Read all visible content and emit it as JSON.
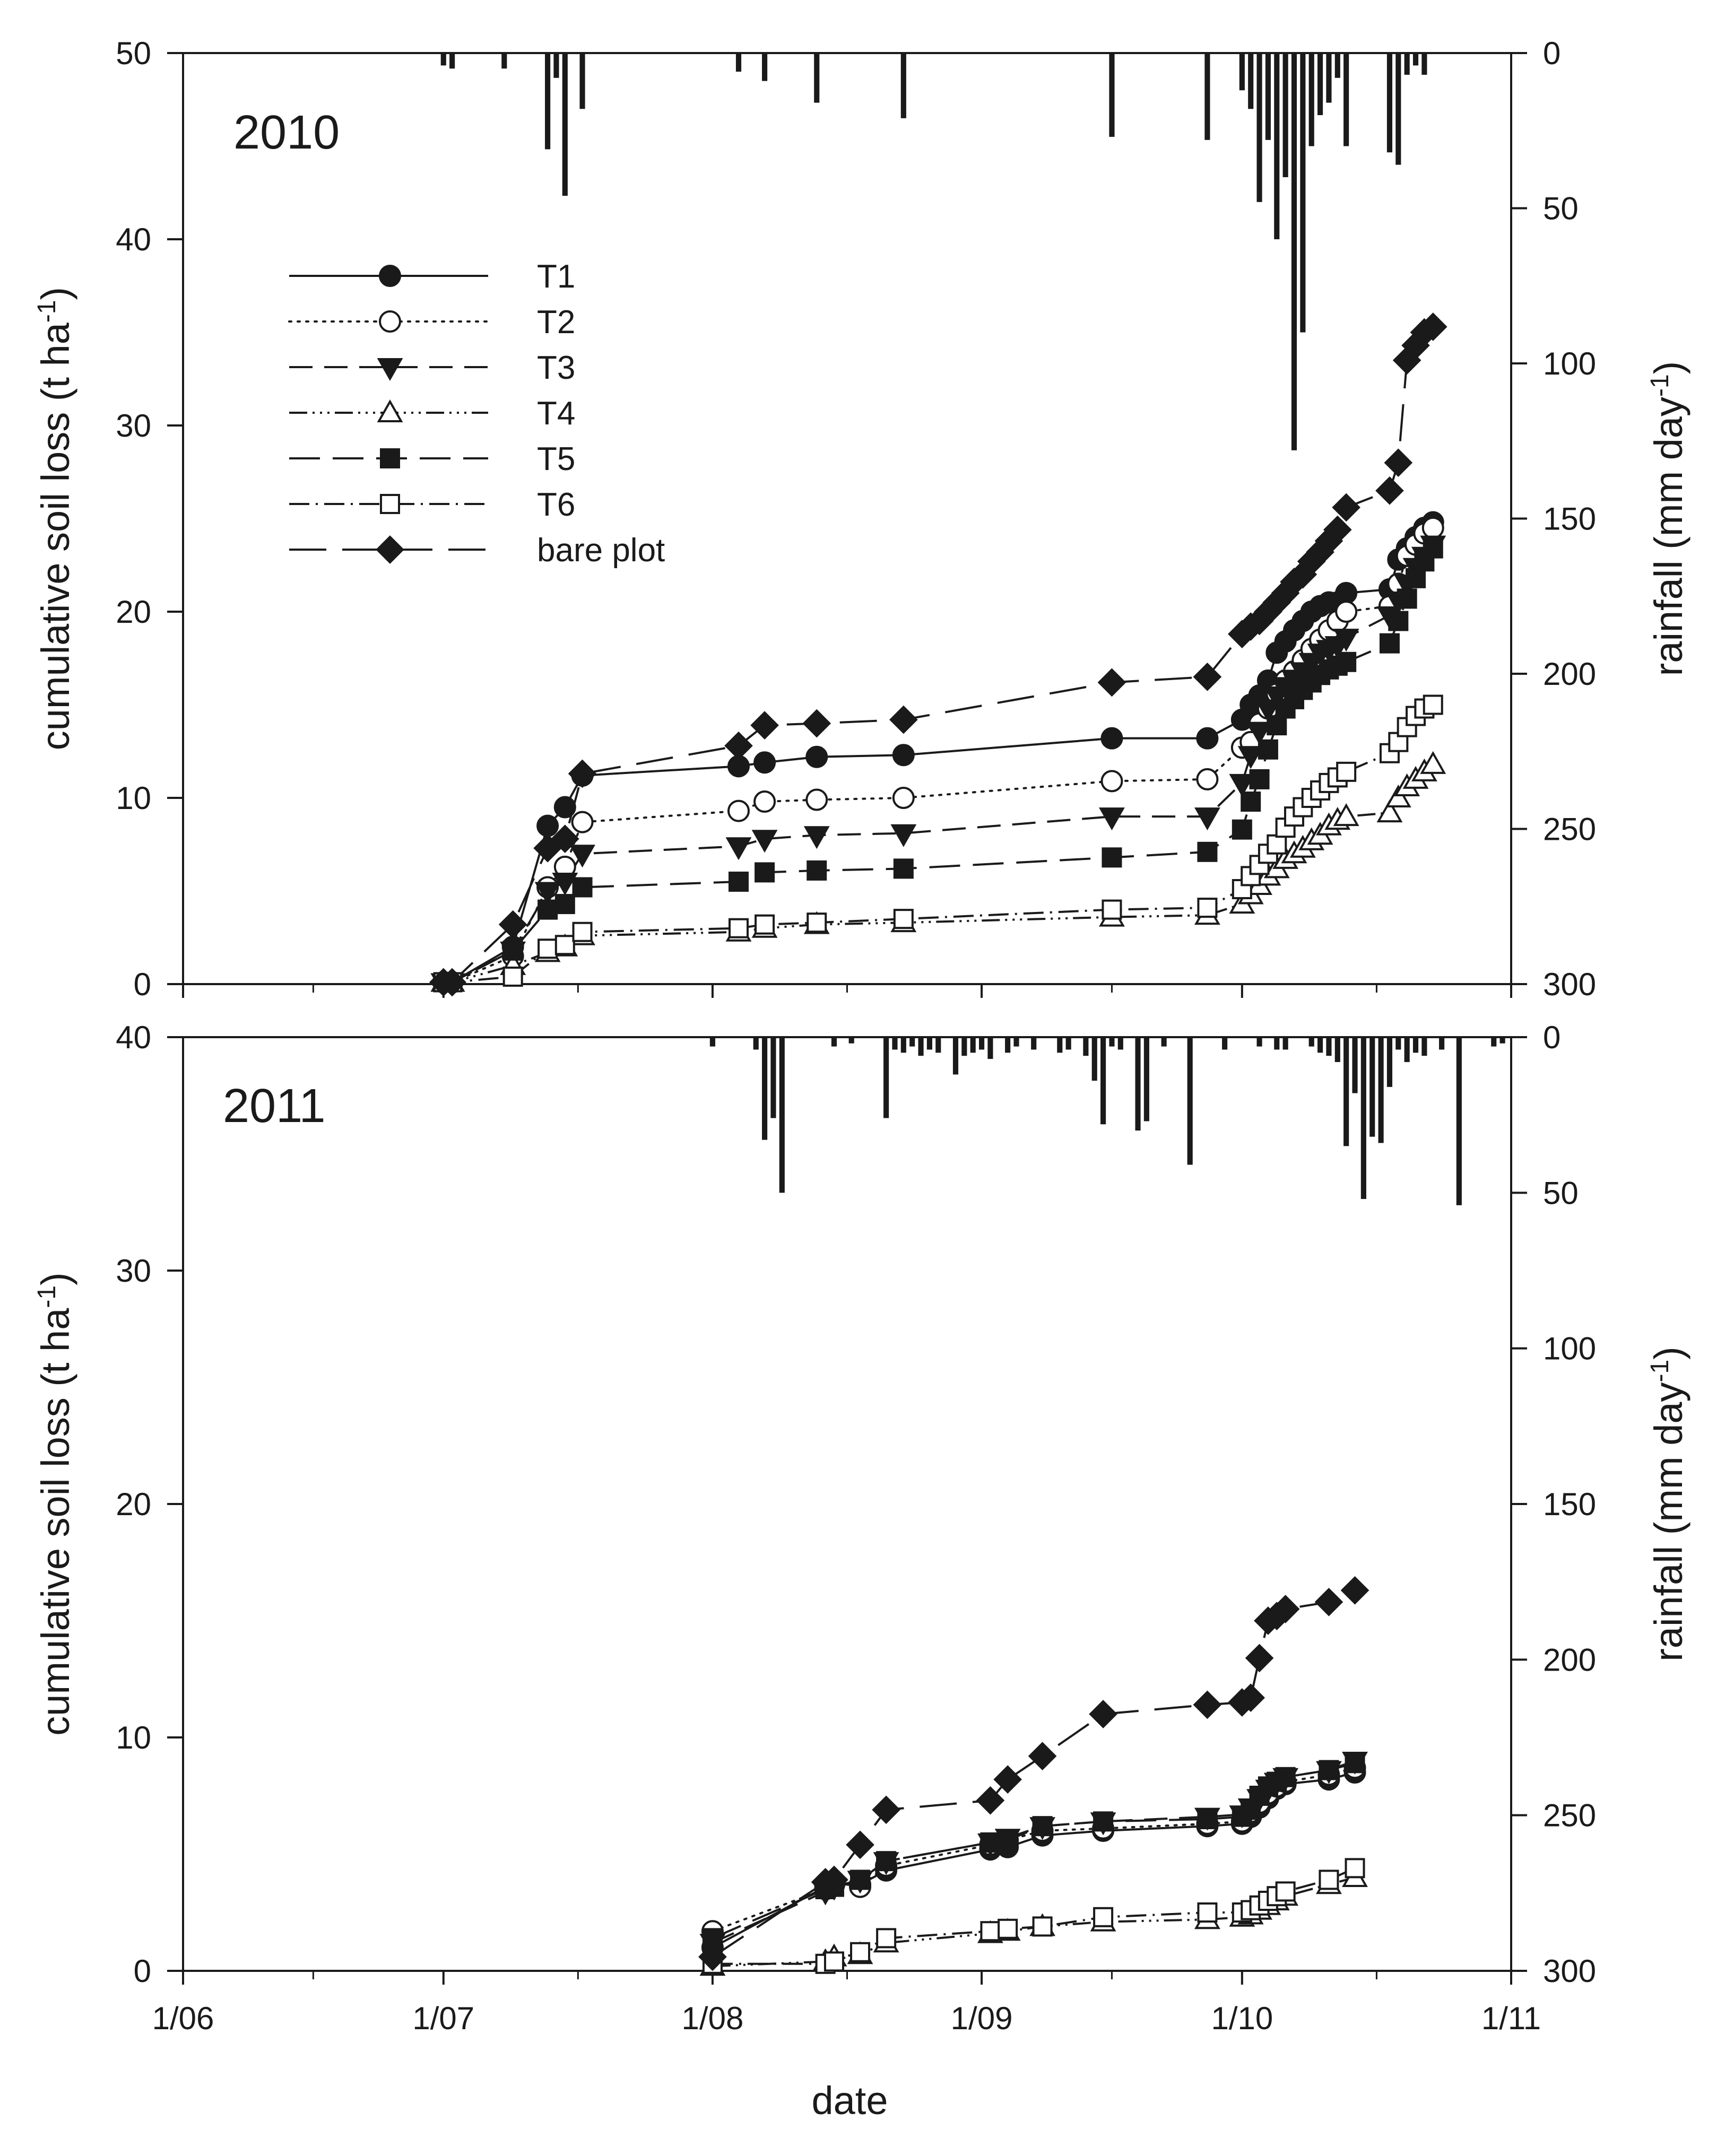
{
  "chart_data": [
    {
      "type": "line",
      "panel": "top",
      "title": "2010",
      "xlabel": "",
      "ylabel": "cumulative soil loss (t ha-1)",
      "ylabel_parts": {
        "base": "cumulative soil loss (t ha",
        "sup": "-1",
        "close": ")"
      },
      "y2label": "rainfall (mm day-1)",
      "y2label_parts": {
        "base": "rainfall (mm day",
        "sup": "-1",
        "close": ")"
      },
      "ylim": [
        0,
        50
      ],
      "yticks": [
        0,
        10,
        20,
        30,
        40,
        50
      ],
      "y2lim": [
        0,
        300
      ],
      "y2ticks": [
        0,
        50,
        100,
        150,
        200,
        250,
        300
      ],
      "y2_inverted": true,
      "x_unit": "day of year",
      "xlim": [
        152,
        305
      ],
      "xticks": [
        152,
        182,
        213,
        244,
        274,
        305
      ],
      "xtick_labels": [
        "1/06",
        "1/07",
        "1/08",
        "1/09",
        "1/10",
        "1/11"
      ],
      "grid": false,
      "legend": {
        "position": "upper-left",
        "entries": [
          "T1",
          "T2",
          "T3",
          "T4",
          "T5",
          "T6",
          "bare plot"
        ]
      },
      "rainfall": {
        "x": [
          182,
          183,
          189,
          194,
          195,
          196,
          198,
          216,
          219,
          225,
          235,
          259,
          270,
          274,
          275,
          276,
          277,
          278,
          279,
          280,
          281,
          282,
          283,
          284,
          285,
          286,
          291,
          292,
          293,
          294,
          295
        ],
        "values": [
          4,
          5,
          5,
          31,
          8,
          46,
          18,
          6,
          9,
          16,
          21,
          27,
          28,
          12,
          18,
          48,
          28,
          60,
          40,
          128,
          90,
          30,
          20,
          16,
          8,
          30,
          32,
          36,
          7,
          4,
          7
        ]
      },
      "series": [
        {
          "name": "T1",
          "x": [
            182,
            183,
            190,
            194,
            196,
            198,
            216,
            219,
            225,
            235,
            259,
            270,
            274,
            275,
            276,
            277,
            278,
            279,
            280,
            281,
            282,
            283,
            284,
            285,
            286,
            291,
            292,
            293,
            294,
            295,
            296
          ],
          "values": [
            0.1,
            0.1,
            2.0,
            8.5,
            9.5,
            11.2,
            11.7,
            11.9,
            12.2,
            12.3,
            13.2,
            13.2,
            14.2,
            15.0,
            15.5,
            16.3,
            17.8,
            18.4,
            19.0,
            19.5,
            20.0,
            20.3,
            20.5,
            20.5,
            21.0,
            21.2,
            22.8,
            23.4,
            24.0,
            24.5,
            24.8
          ]
        },
        {
          "name": "T2",
          "x": [
            182,
            183,
            190,
            194,
            196,
            198,
            216,
            219,
            225,
            235,
            259,
            270,
            274,
            275,
            276,
            277,
            278,
            279,
            280,
            281,
            282,
            283,
            284,
            285,
            286,
            291,
            292,
            293,
            294,
            295,
            296
          ],
          "values": [
            0.1,
            0.1,
            1.5,
            5.2,
            6.3,
            8.7,
            9.3,
            9.8,
            9.9,
            10.0,
            10.9,
            11.0,
            12.7,
            13.0,
            14.0,
            14.8,
            15.6,
            16.3,
            16.8,
            17.4,
            18.0,
            18.5,
            19.0,
            19.5,
            20.0,
            20.3,
            21.5,
            23.0,
            23.6,
            24.2,
            24.5
          ]
        },
        {
          "name": "T3",
          "x": [
            182,
            183,
            190,
            194,
            196,
            198,
            216,
            219,
            225,
            235,
            259,
            270,
            274,
            275,
            276,
            277,
            278,
            279,
            280,
            281,
            282,
            283,
            284,
            285,
            286,
            291,
            292,
            293,
            294,
            295,
            296
          ],
          "values": [
            0.1,
            0.1,
            1.8,
            5.0,
            5.5,
            7.0,
            7.4,
            7.8,
            8.0,
            8.1,
            9.0,
            9.0,
            10.8,
            12.3,
            13.6,
            14.8,
            15.5,
            16.0,
            16.4,
            16.8,
            17.3,
            17.8,
            18.0,
            18.2,
            18.6,
            19.8,
            20.6,
            21.5,
            22.4,
            23.0,
            23.6
          ]
        },
        {
          "name": "T4",
          "x": [
            182,
            183,
            190,
            194,
            196,
            198,
            216,
            219,
            225,
            235,
            259,
            270,
            274,
            275,
            276,
            277,
            278,
            279,
            280,
            281,
            282,
            283,
            284,
            285,
            286,
            291,
            292,
            293,
            294,
            295,
            296
          ],
          "values": [
            0.1,
            0.1,
            1.0,
            1.7,
            2.0,
            2.6,
            2.8,
            3.0,
            3.2,
            3.3,
            3.6,
            3.7,
            4.3,
            4.8,
            5.3,
            5.8,
            6.2,
            6.7,
            7.0,
            7.3,
            7.7,
            8.0,
            8.5,
            8.8,
            9.0,
            9.2,
            10.0,
            10.6,
            11.0,
            11.4,
            11.8
          ]
        },
        {
          "name": "T5",
          "x": [
            182,
            183,
            190,
            194,
            196,
            198,
            216,
            219,
            225,
            235,
            259,
            270,
            274,
            275,
            276,
            277,
            278,
            279,
            280,
            281,
            282,
            283,
            284,
            285,
            286,
            291,
            292,
            293,
            294,
            295,
            296
          ],
          "values": [
            0.1,
            0.1,
            1.8,
            4.0,
            4.3,
            5.2,
            5.5,
            6.0,
            6.1,
            6.2,
            6.8,
            7.1,
            8.3,
            9.8,
            11.0,
            12.6,
            13.9,
            14.8,
            15.3,
            15.8,
            16.2,
            16.6,
            16.9,
            17.1,
            17.3,
            18.3,
            19.5,
            20.7,
            21.8,
            22.7,
            23.4
          ]
        },
        {
          "name": "T6",
          "x": [
            182,
            183,
            190,
            194,
            196,
            198,
            216,
            219,
            225,
            235,
            259,
            270,
            274,
            275,
            276,
            277,
            278,
            279,
            280,
            281,
            282,
            283,
            284,
            285,
            286,
            291,
            292,
            293,
            294,
            295,
            296
          ],
          "values": [
            0.1,
            0.1,
            0.4,
            1.9,
            2.1,
            2.8,
            3.0,
            3.2,
            3.3,
            3.5,
            4.0,
            4.1,
            5.1,
            5.8,
            6.4,
            7.0,
            7.5,
            8.4,
            9.0,
            9.5,
            10.0,
            10.4,
            10.8,
            11.1,
            11.4,
            12.4,
            13.0,
            13.8,
            14.4,
            14.8,
            15.0
          ]
        },
        {
          "name": "bare plot",
          "x": [
            182,
            183,
            190,
            194,
            196,
            198,
            216,
            219,
            225,
            235,
            259,
            270,
            274,
            275,
            276,
            277,
            278,
            279,
            280,
            281,
            282,
            283,
            284,
            285,
            286,
            291,
            292,
            293,
            294,
            295,
            296
          ],
          "values": [
            0.1,
            0.1,
            3.2,
            7.3,
            7.8,
            11.3,
            12.8,
            13.9,
            14.0,
            14.2,
            16.2,
            16.5,
            18.8,
            19.2,
            19.5,
            20.0,
            20.5,
            21.0,
            21.6,
            22.0,
            22.7,
            23.2,
            23.8,
            24.4,
            25.6,
            26.5,
            28.0,
            33.5,
            34.3,
            35.0,
            35.3
          ]
        }
      ]
    },
    {
      "type": "line",
      "panel": "bottom",
      "title": "2011",
      "xlabel": "date",
      "ylabel": "cumulative soil loss (t ha-1)",
      "ylabel_parts": {
        "base": "cumulative soil loss (t ha",
        "sup": "-1",
        "close": ")"
      },
      "y2label": "rainfall (mm day-1)",
      "y2label_parts": {
        "base": "rainfall (mm day",
        "sup": "-1",
        "close": ")"
      },
      "ylim": [
        0,
        40
      ],
      "yticks": [
        0,
        10,
        20,
        30,
        40
      ],
      "y2lim": [
        0,
        300
      ],
      "y2ticks": [
        0,
        50,
        100,
        150,
        200,
        250,
        300
      ],
      "y2_inverted": true,
      "x_unit": "day of year",
      "xlim": [
        152,
        305
      ],
      "xticks": [
        152,
        182,
        213,
        244,
        274,
        305
      ],
      "xtick_labels": [
        "1/06",
        "1/07",
        "1/08",
        "1/09",
        "1/10",
        "1/11"
      ],
      "grid": false,
      "rainfall": {
        "x": [
          213,
          218,
          219,
          220,
          221,
          227,
          229,
          233,
          234,
          235,
          236,
          237,
          238,
          239,
          241,
          242,
          243,
          244,
          245,
          247,
          248,
          250,
          253,
          254,
          256,
          257,
          258,
          259,
          260,
          262,
          263,
          265,
          268,
          272,
          276,
          278,
          279,
          282,
          283,
          284,
          285,
          286,
          287,
          288,
          289,
          290,
          291,
          292,
          293,
          294,
          295,
          297,
          299,
          303,
          304
        ],
        "values": [
          3,
          4,
          33,
          26,
          50,
          3,
          2,
          26,
          4,
          5,
          3,
          6,
          4,
          5,
          12,
          6,
          5,
          4,
          7,
          5,
          3,
          4,
          5,
          4,
          6,
          14,
          28,
          3,
          4,
          30,
          27,
          3,
          41,
          4,
          3,
          4,
          4,
          3,
          5,
          6,
          8,
          35,
          18,
          52,
          32,
          34,
          16,
          4,
          8,
          5,
          6,
          4,
          54,
          3,
          2
        ]
      },
      "series": [
        {
          "name": "T1",
          "x": [
            213,
            226,
            227,
            230,
            233,
            245,
            247,
            251,
            258,
            270,
            274,
            275,
            276,
            277,
            278,
            279,
            284,
            287
          ],
          "values": [
            1.0,
            3.6,
            3.7,
            3.7,
            4.3,
            5.2,
            5.3,
            5.8,
            6.0,
            6.2,
            6.3,
            6.6,
            7.0,
            7.4,
            7.8,
            8.0,
            8.2,
            8.5
          ]
        },
        {
          "name": "T2",
          "x": [
            213,
            226,
            227,
            230,
            233,
            245,
            247,
            251,
            258,
            270,
            274,
            275,
            276,
            277,
            278,
            279,
            284,
            287
          ],
          "values": [
            1.7,
            3.5,
            3.8,
            3.6,
            4.5,
            5.4,
            5.6,
            6.0,
            6.1,
            6.3,
            6.4,
            6.8,
            7.2,
            7.6,
            7.9,
            8.1,
            8.4,
            8.7
          ]
        },
        {
          "name": "T3",
          "x": [
            213,
            226,
            227,
            230,
            233,
            245,
            247,
            251,
            258,
            270,
            274,
            275,
            276,
            277,
            278,
            279,
            284,
            287
          ],
          "values": [
            1.2,
            3.4,
            3.6,
            3.9,
            4.7,
            5.5,
            5.7,
            6.2,
            6.4,
            6.6,
            6.7,
            7.0,
            7.4,
            7.8,
            8.1,
            8.3,
            8.6,
            9.0
          ]
        },
        {
          "name": "T4",
          "x": [
            213,
            226,
            227,
            230,
            233,
            245,
            247,
            251,
            258,
            270,
            274,
            275,
            276,
            277,
            278,
            279,
            284,
            287
          ],
          "values": [
            0.2,
            0.4,
            0.6,
            0.7,
            1.2,
            1.6,
            1.7,
            1.9,
            2.1,
            2.2,
            2.3,
            2.4,
            2.6,
            2.8,
            3.0,
            3.2,
            3.7,
            4.0
          ]
        },
        {
          "name": "T5",
          "x": [
            213,
            226,
            227,
            230,
            233,
            245,
            247,
            251,
            258,
            270,
            274,
            275,
            276,
            277,
            278,
            279,
            284,
            287
          ],
          "values": [
            1.4,
            3.5,
            3.6,
            3.9,
            4.7,
            5.5,
            5.6,
            6.2,
            6.4,
            6.5,
            6.6,
            6.9,
            7.5,
            7.9,
            8.1,
            8.3,
            8.6,
            8.9
          ]
        },
        {
          "name": "T6",
          "x": [
            213,
            226,
            227,
            230,
            233,
            245,
            247,
            251,
            258,
            270,
            274,
            275,
            276,
            277,
            278,
            279,
            284,
            287
          ],
          "values": [
            0.3,
            0.3,
            0.4,
            0.8,
            1.4,
            1.7,
            1.8,
            1.9,
            2.3,
            2.5,
            2.5,
            2.6,
            2.8,
            3.0,
            3.2,
            3.4,
            3.9,
            4.4
          ]
        },
        {
          "name": "bare plot",
          "x": [
            213,
            226,
            227,
            230,
            233,
            245,
            247,
            251,
            258,
            270,
            274,
            275,
            276,
            277,
            278,
            279,
            284,
            287
          ],
          "values": [
            0.6,
            3.8,
            3.9,
            5.4,
            6.9,
            7.3,
            8.2,
            9.2,
            11.0,
            11.4,
            11.5,
            11.7,
            13.4,
            15.0,
            15.2,
            15.5,
            15.8,
            16.3
          ]
        }
      ]
    }
  ]
}
